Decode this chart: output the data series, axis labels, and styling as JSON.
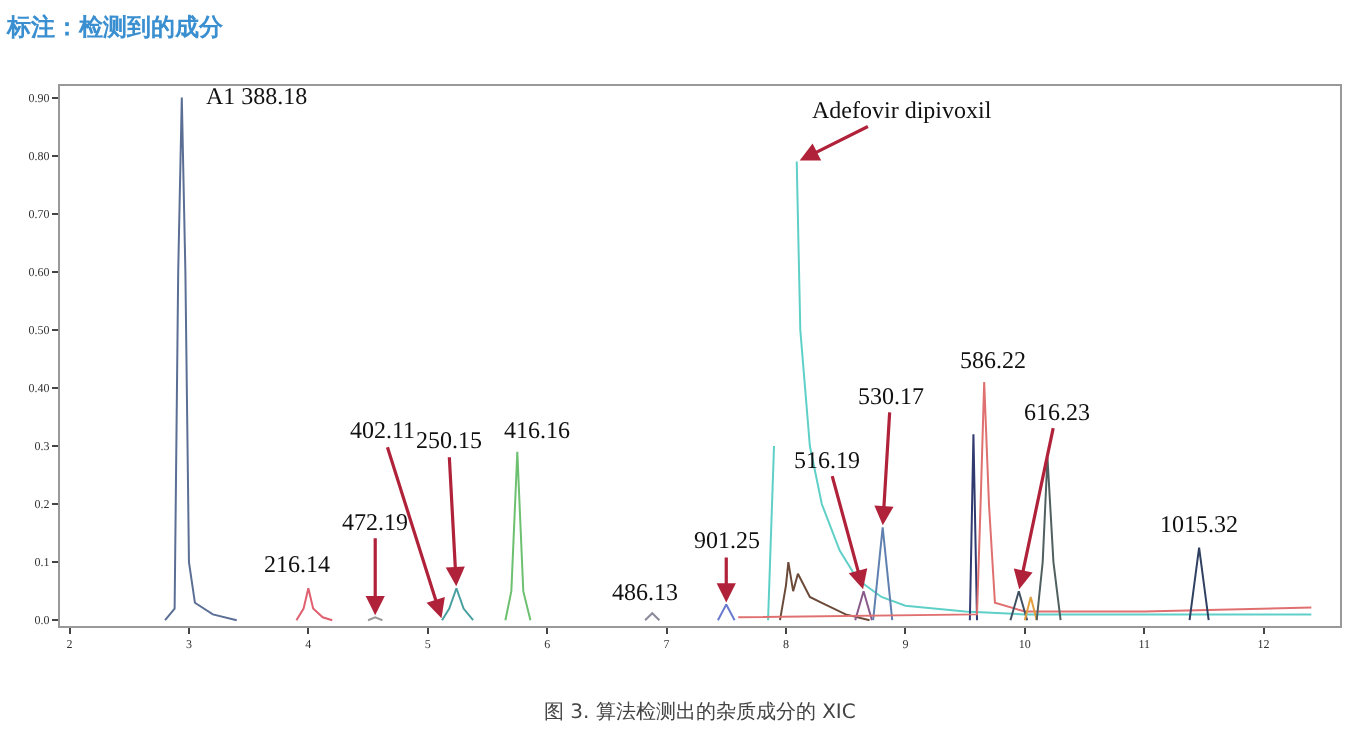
{
  "chart_data": {
    "type": "line",
    "title": "标注：检测到的成分",
    "xlim": [
      1.92,
      12.64
    ],
    "xticks": [
      2,
      3,
      4,
      5,
      6,
      7,
      8,
      9,
      10,
      11,
      12
    ],
    "ylim": [
      -0.01,
      0.92
    ],
    "yticks": [
      {
        "value": 0,
        "label": "0.0"
      },
      {
        "value": 0.1,
        "label": "0.1"
      },
      {
        "value": 0.2,
        "label": "0.2"
      },
      {
        "value": 0.3,
        "label": "0.3"
      },
      {
        "value": 0.4,
        "label": "0.40"
      },
      {
        "value": 0.5,
        "label": "0.50"
      },
      {
        "value": 0.6,
        "label": "0.60"
      },
      {
        "value": 0.7,
        "label": "0.70"
      },
      {
        "value": 0.8,
        "label": "0.80"
      },
      {
        "value": 0.9,
        "label": "0.90"
      }
    ],
    "grid": false,
    "marker": "none",
    "line_style": "solid",
    "series": [
      {
        "color": "#5b6f95",
        "x": [
          2.8,
          2.88,
          2.91,
          2.94,
          2.97,
          3.0,
          3.05,
          3.2,
          3.4
        ],
        "values": [
          0,
          0.02,
          0.6,
          0.9,
          0.6,
          0.1,
          0.03,
          0.01,
          0
        ]
      },
      {
        "color": "#e06070",
        "x": [
          3.9,
          3.96,
          4.0,
          4.04,
          4.12,
          4.2
        ],
        "values": [
          0,
          0.02,
          0.055,
          0.02,
          0.005,
          0
        ]
      },
      {
        "color": "#999999",
        "x": [
          4.5,
          4.56,
          4.62
        ],
        "values": [
          0,
          0.005,
          0
        ]
      },
      {
        "color": "#4aa0a0",
        "x": [
          5.12,
          5.18,
          5.24,
          5.3,
          5.38
        ],
        "values": [
          0,
          0.02,
          0.055,
          0.02,
          0
        ]
      },
      {
        "color": "#6cc070",
        "x": [
          5.65,
          5.7,
          5.75,
          5.8,
          5.86
        ],
        "values": [
          0,
          0.05,
          0.29,
          0.05,
          0
        ]
      },
      {
        "color": "#8a8a9a",
        "x": [
          6.82,
          6.88,
          6.94
        ],
        "values": [
          0,
          0.012,
          0
        ]
      },
      {
        "color": "#6a7ad0",
        "x": [
          7.43,
          7.5,
          7.57
        ],
        "values": [
          0,
          0.027,
          0
        ]
      },
      {
        "color": "#5fd0c8",
        "x": [
          7.85,
          7.9,
          7.93,
          8.07,
          8.09,
          8.12,
          8.2,
          8.3,
          8.45,
          8.6,
          8.8,
          9.0,
          9.5,
          10,
          12.4
        ],
        "values": [
          0,
          0.3,
          null,
          null,
          0.79,
          0.5,
          0.3,
          0.2,
          0.12,
          0.07,
          0.04,
          0.025,
          0.015,
          0.01,
          0.01
        ]
      },
      {
        "color": "#6b4a3a",
        "x": [
          7.95,
          8.0,
          8.02,
          8.06,
          8.1,
          8.2,
          8.3,
          8.5,
          8.7
        ],
        "values": [
          0,
          0.06,
          0.1,
          0.05,
          0.08,
          0.04,
          0.03,
          0.01,
          0
        ]
      },
      {
        "color": "#8a5a8a",
        "x": [
          8.58,
          8.65,
          8.72
        ],
        "values": [
          0,
          0.05,
          0
        ]
      },
      {
        "color": "#6080b0",
        "x": [
          8.73,
          8.81,
          8.89
        ],
        "values": [
          0,
          0.16,
          0
        ]
      },
      {
        "color": "#303a70",
        "x": [
          9.54,
          9.57,
          9.6
        ],
        "values": [
          0,
          0.32,
          0
        ]
      },
      {
        "color": "#e07070",
        "x": [
          7.6,
          9.6,
          9.63,
          9.66,
          9.7,
          9.75,
          10,
          11,
          12.4
        ],
        "values": [
          0.005,
          0.01,
          0.2,
          0.41,
          0.2,
          0.03,
          0.015,
          0.015,
          0.022
        ]
      },
      {
        "color": "#405060",
        "x": [
          9.88,
          9.95,
          10.02
        ],
        "values": [
          0,
          0.05,
          0
        ]
      },
      {
        "color": "#e0a040",
        "x": [
          10.0,
          10.05,
          10.1
        ],
        "values": [
          0,
          0.04,
          0
        ]
      },
      {
        "color": "#506060",
        "x": [
          10.1,
          10.15,
          10.19,
          10.24,
          10.3
        ],
        "values": [
          0,
          0.1,
          0.28,
          0.1,
          0
        ]
      },
      {
        "color": "#304060",
        "x": [
          11.38,
          11.46,
          11.54
        ],
        "values": [
          0,
          0.125,
          0
        ]
      }
    ],
    "annotations": [
      {
        "text": "A1 388.18",
        "x": 2.94,
        "y": 0.9
      },
      {
        "text": "216.14",
        "x": 4.0,
        "y": 0.055
      },
      {
        "text": "472.19",
        "x": 4.56,
        "y": 0.005
      },
      {
        "text": "402.11",
        "x": 5.12,
        "y": 0.0
      },
      {
        "text": "250.15",
        "x": 5.24,
        "y": 0.055
      },
      {
        "text": "416.16",
        "x": 5.75,
        "y": 0.29
      },
      {
        "text": "486.13",
        "x": 6.88,
        "y": 0.012
      },
      {
        "text": "901.25",
        "x": 7.5,
        "y": 0.027
      },
      {
        "text": "Adefovir dipivoxil",
        "x": 8.1,
        "y": 0.79
      },
      {
        "text": "516.19",
        "x": 8.65,
        "y": 0.05
      },
      {
        "text": "530.17",
        "x": 8.81,
        "y": 0.16
      },
      {
        "text": "586.22",
        "x": 9.66,
        "y": 0.41
      },
      {
        "text": "616.23",
        "x": 9.95,
        "y": 0.05
      },
      {
        "text": "1015.32",
        "x": 11.46,
        "y": 0.125
      },
      "图 3. 算法检测出的杂质成分的 XIC"
    ]
  }
}
